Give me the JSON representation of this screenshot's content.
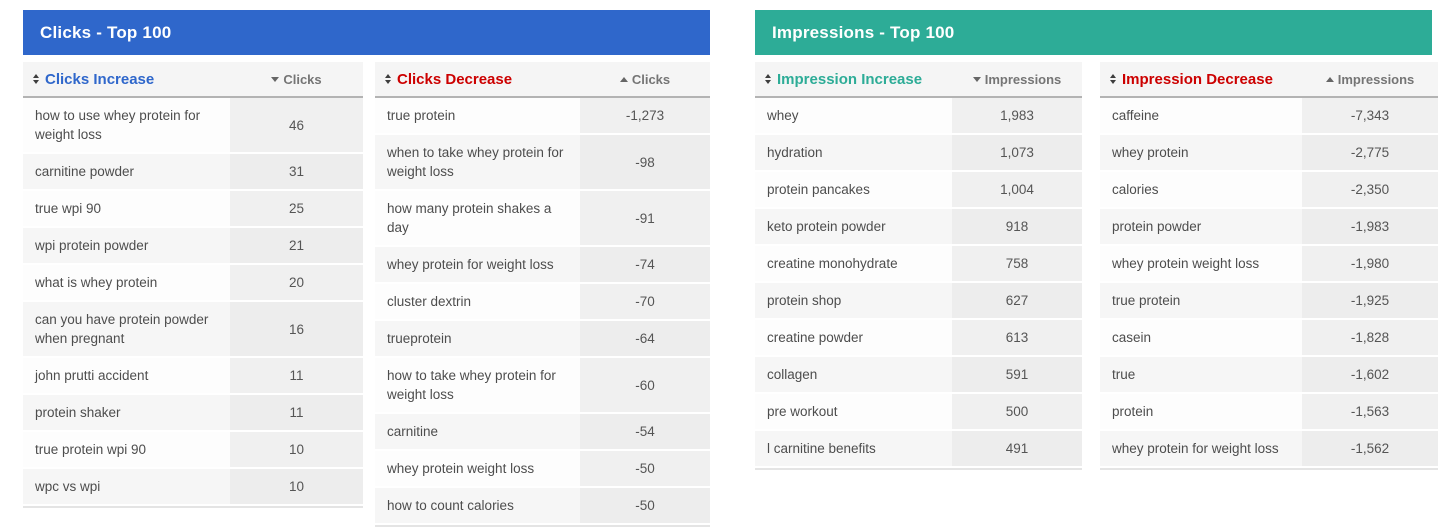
{
  "colors": {
    "clicks_accent": "#2f67cb",
    "impressions_accent": "#2dac97",
    "decrease_title_color": "#cc0000",
    "header_row_bg": "#f5f5f5"
  },
  "panels": [
    {
      "title": "Clicks - Top 100",
      "bar_color": "#2f67cb",
      "tables": [
        {
          "title": "Clicks Increase",
          "title_color": "#2f67cb",
          "value_header": "Clicks",
          "sort": "desc",
          "rows": [
            {
              "keyword": "how to use whey protein for weight loss",
              "value": "46"
            },
            {
              "keyword": "carnitine powder",
              "value": "31"
            },
            {
              "keyword": "true wpi 90",
              "value": "25"
            },
            {
              "keyword": "wpi protein powder",
              "value": "21"
            },
            {
              "keyword": "what is whey protein",
              "value": "20"
            },
            {
              "keyword": "can you have protein powder when pregnant",
              "value": "16"
            },
            {
              "keyword": "john prutti accident",
              "value": "11"
            },
            {
              "keyword": "protein shaker",
              "value": "11"
            },
            {
              "keyword": "true protein wpi 90",
              "value": "10"
            },
            {
              "keyword": "wpc vs wpi",
              "value": "10"
            }
          ]
        },
        {
          "title": "Clicks Decrease",
          "title_color": "#cc0000",
          "value_header": "Clicks",
          "sort": "asc",
          "rows": [
            {
              "keyword": "true protein",
              "value": "-1,273"
            },
            {
              "keyword": "when to take whey protein for weight loss",
              "value": "-98"
            },
            {
              "keyword": "how many protein shakes a day",
              "value": "-91"
            },
            {
              "keyword": "whey protein for weight loss",
              "value": "-74"
            },
            {
              "keyword": "cluster dextrin",
              "value": "-70"
            },
            {
              "keyword": "trueprotein",
              "value": "-64"
            },
            {
              "keyword": "how to take whey protein for weight loss",
              "value": "-60"
            },
            {
              "keyword": "carnitine",
              "value": "-54"
            },
            {
              "keyword": "whey protein weight loss",
              "value": "-50"
            },
            {
              "keyword": "how to count calories",
              "value": "-50"
            }
          ]
        }
      ]
    },
    {
      "title": "Impressions - Top 100",
      "bar_color": "#2dac97",
      "tables": [
        {
          "title": "Impression Increase",
          "title_color": "#2dac97",
          "value_header": "Impressions",
          "sort": "desc",
          "rows": [
            {
              "keyword": "whey",
              "value": "1,983"
            },
            {
              "keyword": "hydration",
              "value": "1,073"
            },
            {
              "keyword": "protein pancakes",
              "value": "1,004"
            },
            {
              "keyword": "keto protein powder",
              "value": "918"
            },
            {
              "keyword": "creatine monohydrate",
              "value": "758"
            },
            {
              "keyword": "protein shop",
              "value": "627"
            },
            {
              "keyword": "creatine powder",
              "value": "613"
            },
            {
              "keyword": "collagen",
              "value": "591"
            },
            {
              "keyword": "pre workout",
              "value": "500"
            },
            {
              "keyword": "l carnitine benefits",
              "value": "491"
            }
          ]
        },
        {
          "title": "Impression Decrease",
          "title_color": "#cc0000",
          "value_header": "Impressions",
          "sort": "asc",
          "rows": [
            {
              "keyword": "caffeine",
              "value": "-7,343"
            },
            {
              "keyword": "whey protein",
              "value": "-2,775"
            },
            {
              "keyword": "calories",
              "value": "-2,350"
            },
            {
              "keyword": "protein powder",
              "value": "-1,983"
            },
            {
              "keyword": "whey protein weight loss",
              "value": "-1,980"
            },
            {
              "keyword": "true protein",
              "value": "-1,925"
            },
            {
              "keyword": "casein",
              "value": "-1,828"
            },
            {
              "keyword": "true",
              "value": "-1,602"
            },
            {
              "keyword": "protein",
              "value": "-1,563"
            },
            {
              "keyword": "whey protein for weight loss",
              "value": "-1,562"
            }
          ]
        }
      ]
    }
  ]
}
